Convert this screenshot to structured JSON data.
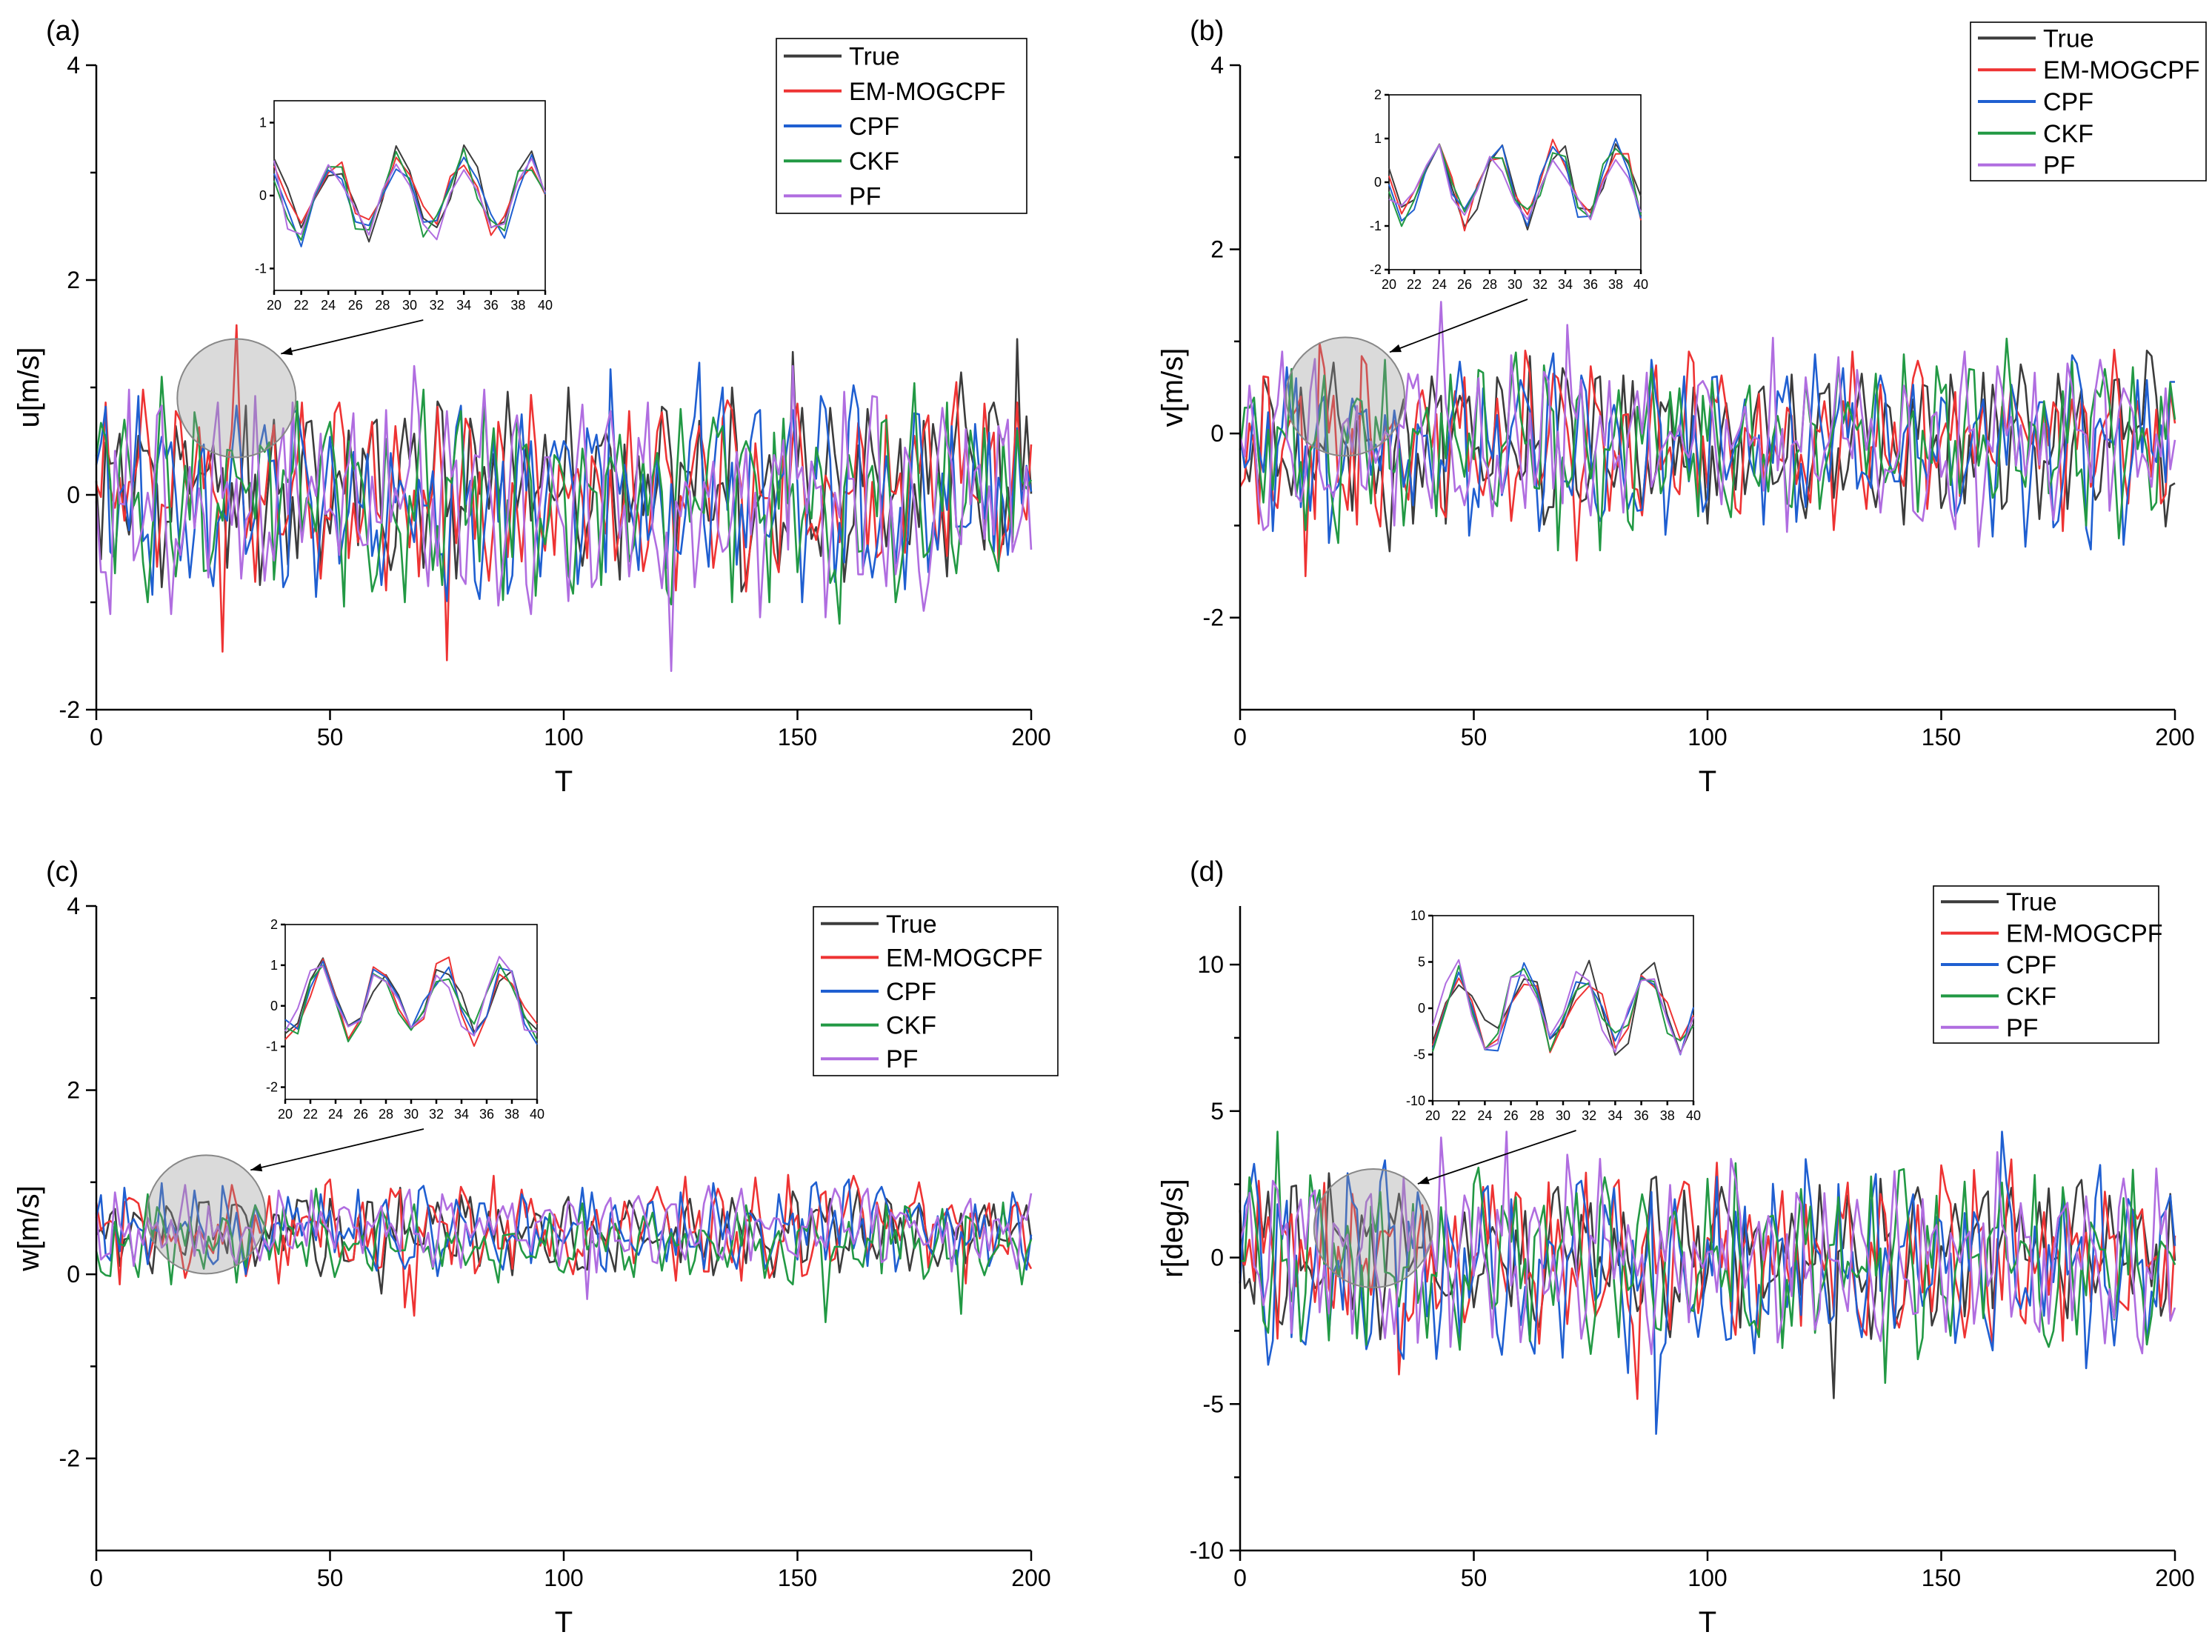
{
  "colors": {
    "True": "#3c3c3c",
    "EM-MOGCPF": "#ee3333",
    "CPF": "#1f5fd1",
    "CKF": "#229944",
    "PF": "#b06de0"
  },
  "chart_data": [
    {
      "type": "line",
      "panel_label": "(a)",
      "xlabel": "T",
      "ylabel": "u[m/s]",
      "xlim": [
        0,
        200
      ],
      "ylim": [
        -2,
        4
      ],
      "xticks": [
        0,
        50,
        100,
        150,
        200
      ],
      "yticks": [
        -2,
        0,
        2,
        4
      ],
      "legend": [
        "True",
        "EM-MOGCPF",
        "CPF",
        "CKF",
        "PF"
      ],
      "legend_position": "top-right",
      "zoom_region": {
        "x": [
          20,
          40
        ],
        "y": [
          0.3,
          1.5
        ]
      },
      "inset": {
        "xlim": [
          20,
          40
        ],
        "ylim": [
          -1.3,
          1.3
        ],
        "xticks": [
          20,
          22,
          24,
          26,
          28,
          30,
          32,
          34,
          36,
          38,
          40
        ],
        "yticks": [
          -1,
          0,
          1
        ]
      },
      "series": [
        {
          "name": "True",
          "base": 0.1,
          "amp": 0.7,
          "seed": 11
        },
        {
          "name": "EM-MOGCPF",
          "base": 0.05,
          "amp": 0.75,
          "seed": 12
        },
        {
          "name": "CPF",
          "base": 0.0,
          "amp": 0.75,
          "seed": 13
        },
        {
          "name": "CKF",
          "base": 0.0,
          "amp": 0.8,
          "seed": 14
        },
        {
          "name": "PF",
          "base": -0.05,
          "amp": 0.8,
          "seed": 15
        }
      ]
    },
    {
      "type": "line",
      "panel_label": "(b)",
      "xlabel": "T",
      "ylabel": "v[m/s]",
      "xlim": [
        0,
        200
      ],
      "ylim": [
        -3,
        4
      ],
      "xticks": [
        0,
        50,
        100,
        150,
        200
      ],
      "yticks": [
        -2,
        0,
        2,
        4
      ],
      "legend": [
        "True",
        "EM-MOGCPF",
        "CPF",
        "CKF",
        "PF"
      ],
      "legend_position": "top-right",
      "zoom_region": {
        "x": [
          10,
          35
        ],
        "y": [
          -0.2,
          1.0
        ]
      },
      "inset": {
        "xlim": [
          20,
          40
        ],
        "ylim": [
          -2,
          2
        ],
        "xticks": [
          20,
          22,
          24,
          26,
          28,
          30,
          32,
          34,
          36,
          38,
          40
        ],
        "yticks": [
          -2,
          -1,
          0,
          1,
          2
        ]
      },
      "series": [
        {
          "name": "True",
          "base": -0.1,
          "amp": 0.7,
          "seed": 21
        },
        {
          "name": "EM-MOGCPF",
          "base": -0.1,
          "amp": 0.75,
          "seed": 22
        },
        {
          "name": "CPF",
          "base": -0.15,
          "amp": 0.8,
          "seed": 23
        },
        {
          "name": "CKF",
          "base": -0.1,
          "amp": 0.75,
          "seed": 24
        },
        {
          "name": "PF",
          "base": -0.1,
          "amp": 0.75,
          "seed": 25
        }
      ]
    },
    {
      "type": "line",
      "panel_label": "(c)",
      "xlabel": "T",
      "ylabel": "w[m/s]",
      "xlim": [
        0,
        200
      ],
      "ylim": [
        -3,
        4
      ],
      "xticks": [
        0,
        50,
        100,
        150,
        200
      ],
      "yticks": [
        -2,
        0,
        2,
        4
      ],
      "legend": [
        "True",
        "EM-MOGCPF",
        "CPF",
        "CKF",
        "PF"
      ],
      "legend_position": "top-right",
      "zoom_region": {
        "x": [
          12,
          35
        ],
        "y": [
          0.0,
          1.3
        ]
      },
      "inset": {
        "xlim": [
          20,
          40
        ],
        "ylim": [
          -2.3,
          2
        ],
        "xticks": [
          20,
          22,
          24,
          26,
          28,
          30,
          32,
          34,
          36,
          38,
          40
        ],
        "yticks": [
          -2,
          -1,
          0,
          1,
          2
        ]
      },
      "series": [
        {
          "name": "True",
          "base": 0.45,
          "amp": 0.35,
          "seed": 31
        },
        {
          "name": "EM-MOGCPF",
          "base": 0.5,
          "amp": 0.45,
          "seed": 32
        },
        {
          "name": "CPF",
          "base": 0.5,
          "amp": 0.4,
          "seed": 33
        },
        {
          "name": "CKF",
          "base": 0.35,
          "amp": 0.35,
          "seed": 34
        },
        {
          "name": "PF",
          "base": 0.5,
          "amp": 0.35,
          "seed": 35
        }
      ]
    },
    {
      "type": "line",
      "panel_label": "(d)",
      "xlabel": "T",
      "ylabel": "r[deg/s]",
      "xlim": [
        0,
        200
      ],
      "ylim": [
        -10,
        12
      ],
      "xticks": [
        0,
        50,
        100,
        150,
        200
      ],
      "yticks": [
        -10,
        -5,
        0,
        5,
        10
      ],
      "legend": [
        "True",
        "EM-MOGCPF",
        "CPF",
        "CKF",
        "PF"
      ],
      "legend_position": "top-right",
      "zoom_region": {
        "x": [
          15,
          42
        ],
        "y": [
          -1,
          3
        ]
      },
      "inset": {
        "xlim": [
          20,
          40
        ],
        "ylim": [
          -10,
          10
        ],
        "xticks": [
          20,
          22,
          24,
          26,
          28,
          30,
          32,
          34,
          36,
          38,
          40
        ],
        "yticks": [
          -10,
          -5,
          0,
          5,
          10
        ]
      },
      "series": [
        {
          "name": "True",
          "base": 0.0,
          "amp": 2.4,
          "seed": 41
        },
        {
          "name": "EM-MOGCPF",
          "base": 0.0,
          "amp": 2.5,
          "seed": 42
        },
        {
          "name": "CPF",
          "base": -0.2,
          "amp": 2.7,
          "seed": 43
        },
        {
          "name": "CKF",
          "base": -0.1,
          "amp": 2.5,
          "seed": 44
        },
        {
          "name": "PF",
          "base": 0.0,
          "amp": 2.6,
          "seed": 45
        }
      ]
    }
  ]
}
